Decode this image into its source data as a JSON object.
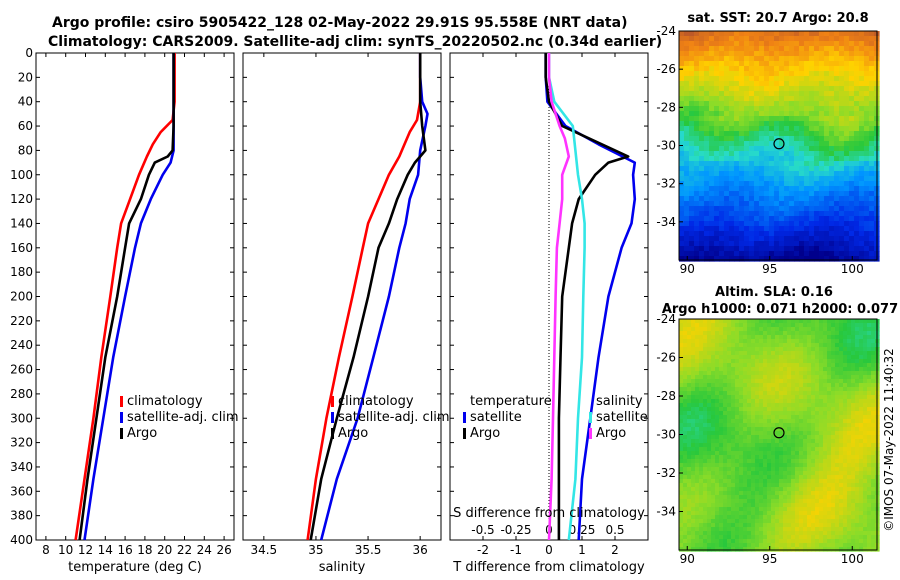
{
  "header": {
    "line1": "Argo profile: csiro 5905422_128 02-May-2022 29.91S 95.558E (NRT data)",
    "line2": "Climatology: CARS2009. Satellite-adj clim: synTS_20220502.nc (0.34d earlier)"
  },
  "colors": {
    "climatology": "#ff0000",
    "satellite": "#0000ee",
    "argo": "#000000",
    "sal_argo": "#ff33ff",
    "sal_sat": "#33e6e6"
  },
  "chart_data": [
    {
      "type": "line",
      "id": "temperature-panel",
      "xlabel": "temperature (deg C)",
      "ylabel": "",
      "xlim": [
        7,
        27
      ],
      "ylim": [
        400,
        0
      ],
      "x_ticks": [
        "8",
        "10",
        "12",
        "14",
        "16",
        "18",
        "20",
        "22",
        "24",
        "26"
      ],
      "y_ticks": [
        "0",
        "20",
        "40",
        "60",
        "80",
        "100",
        "120",
        "140",
        "160",
        "180",
        "200",
        "220",
        "240",
        "260",
        "280",
        "300",
        "320",
        "340",
        "360",
        "380",
        "400"
      ],
      "legend": [
        "climatology",
        "satellite-adj. clim",
        "Argo"
      ],
      "series": [
        {
          "name": "climatology",
          "depth": [
            0,
            20,
            40,
            55,
            65,
            75,
            85,
            100,
            120,
            140,
            160,
            200,
            250,
            300,
            350,
            400
          ],
          "values": [
            21.0,
            21.0,
            21.0,
            20.8,
            19.6,
            18.8,
            18.2,
            17.4,
            16.5,
            15.6,
            15.2,
            14.5,
            13.6,
            12.8,
            11.9,
            11.0
          ]
        },
        {
          "name": "satellite-adj. clim",
          "depth": [
            0,
            20,
            40,
            60,
            80,
            90,
            100,
            120,
            140,
            160,
            200,
            250,
            300,
            350,
            400
          ],
          "values": [
            20.9,
            20.9,
            20.9,
            20.9,
            20.9,
            20.6,
            19.8,
            18.6,
            17.6,
            17.0,
            16.0,
            14.8,
            13.8,
            12.8,
            11.9
          ]
        },
        {
          "name": "Argo",
          "depth": [
            0,
            20,
            40,
            60,
            80,
            85,
            90,
            100,
            120,
            140,
            160,
            200,
            250,
            300,
            350,
            400
          ],
          "values": [
            20.9,
            20.9,
            20.9,
            20.9,
            20.8,
            20.3,
            19.0,
            18.4,
            17.6,
            16.4,
            16.0,
            15.2,
            14.0,
            13.1,
            12.2,
            11.4
          ]
        }
      ]
    },
    {
      "type": "line",
      "id": "salinity-panel",
      "xlabel": "salinity",
      "xlim": [
        34.3,
        36.2
      ],
      "ylim": [
        400,
        0
      ],
      "x_ticks": [
        "34.5",
        "35",
        "35.5",
        "36"
      ],
      "legend": [
        "climatology",
        "satellite-adj. clim",
        "Argo"
      ],
      "series": [
        {
          "name": "climatology",
          "depth": [
            0,
            20,
            40,
            55,
            65,
            75,
            85,
            100,
            120,
            140,
            160,
            200,
            250,
            300,
            350,
            400
          ],
          "values": [
            36.0,
            36.0,
            36.0,
            35.97,
            35.9,
            35.85,
            35.8,
            35.7,
            35.6,
            35.5,
            35.45,
            35.35,
            35.22,
            35.1,
            35.0,
            34.92
          ]
        },
        {
          "name": "satellite-adj. clim",
          "depth": [
            0,
            20,
            40,
            50,
            60,
            80,
            100,
            120,
            140,
            160,
            200,
            250,
            300,
            350,
            400
          ],
          "values": [
            36.0,
            36.0,
            36.02,
            36.07,
            36.05,
            36.0,
            35.98,
            35.9,
            35.86,
            35.8,
            35.7,
            35.55,
            35.4,
            35.2,
            35.05
          ]
        },
        {
          "name": "Argo",
          "depth": [
            0,
            20,
            40,
            60,
            80,
            85,
            90,
            100,
            120,
            140,
            160,
            200,
            250,
            300,
            350,
            400
          ],
          "values": [
            36.0,
            36.0,
            36.0,
            36.02,
            36.05,
            36.0,
            35.95,
            35.88,
            35.78,
            35.7,
            35.6,
            35.5,
            35.36,
            35.2,
            35.05,
            34.95
          ]
        }
      ]
    },
    {
      "type": "line",
      "id": "difference-panel",
      "xlabel": "T difference from climatology",
      "xlabel_top": "S difference from climatology",
      "xlim": [
        -3.0,
        3.0
      ],
      "ylim": [
        400,
        0
      ],
      "x_ticks": [
        "-2",
        "-1",
        "0",
        "1",
        "2"
      ],
      "top_ticks": [
        "-0.5",
        "-0.25",
        "0",
        "0.25",
        "0.5"
      ],
      "legend_temperature": {
        "title": "temperature",
        "items": [
          "satellite",
          "Argo"
        ]
      },
      "legend_salinity": {
        "title": "salinity",
        "items": [
          "satellite",
          "Argo"
        ]
      },
      "series": [
        {
          "name": "temperature satellite",
          "depth": [
            0,
            20,
            40,
            60,
            75,
            90,
            100,
            120,
            140,
            160,
            200,
            250,
            300,
            350,
            400
          ],
          "values": [
            -0.1,
            -0.1,
            -0.05,
            0.5,
            1.5,
            2.6,
            2.55,
            2.6,
            2.5,
            2.2,
            1.8,
            1.5,
            1.25,
            1.0,
            0.9
          ]
        },
        {
          "name": "temperature Argo",
          "depth": [
            0,
            20,
            40,
            60,
            75,
            85,
            90,
            95,
            100,
            120,
            140,
            160,
            200,
            250,
            300,
            350,
            400
          ],
          "values": [
            -0.1,
            -0.1,
            0.0,
            0.4,
            1.6,
            2.4,
            1.8,
            1.6,
            1.4,
            0.9,
            0.7,
            0.6,
            0.4,
            0.35,
            0.3,
            0.3,
            0.3
          ]
        },
        {
          "name": "salinity satellite",
          "depth": [
            0,
            20,
            40,
            60,
            80,
            100,
            120,
            140,
            160,
            200,
            250,
            300,
            350,
            400
          ],
          "values": [
            0.0,
            0.0,
            0.04,
            0.18,
            0.2,
            0.22,
            0.25,
            0.27,
            0.27,
            0.26,
            0.25,
            0.22,
            0.2,
            0.15
          ]
        },
        {
          "name": "salinity Argo",
          "depth": [
            0,
            20,
            40,
            60,
            70,
            85,
            100,
            120,
            140,
            160,
            200,
            250,
            300,
            350,
            400
          ],
          "values": [
            0.0,
            0.0,
            0.02,
            0.08,
            0.12,
            0.15,
            0.1,
            0.1,
            0.08,
            0.06,
            0.05,
            0.04,
            0.03,
            0.02,
            0.0
          ]
        }
      ]
    },
    {
      "type": "heatmap",
      "id": "sst-map",
      "title": "sat. SST: 20.7 Argo: 20.8",
      "xlim": [
        89.5,
        101.5
      ],
      "ylim": [
        -36,
        -24
      ],
      "x_ticks": [
        "90",
        "95",
        "100"
      ],
      "y_ticks": [
        "-24",
        "-26",
        "-28",
        "-30",
        "-32",
        "-34"
      ],
      "marker": {
        "lon": 95.56,
        "lat": -29.91
      }
    },
    {
      "type": "heatmap",
      "id": "sla-map",
      "title": "Altim. SLA: 0.16",
      "subtitle": "Argo h1000: 0.071 h2000: 0.077",
      "xlim": [
        89.5,
        101.5
      ],
      "ylim": [
        -36,
        -24
      ],
      "x_ticks": [
        "90",
        "95",
        "100"
      ],
      "y_ticks": [
        "-24",
        "-26",
        "-28",
        "-30",
        "-32",
        "-34"
      ],
      "marker": {
        "lon": 95.56,
        "lat": -29.91
      }
    }
  ],
  "footer": {
    "stamp": "©IMOS 07-May-2022 11:40:32"
  }
}
